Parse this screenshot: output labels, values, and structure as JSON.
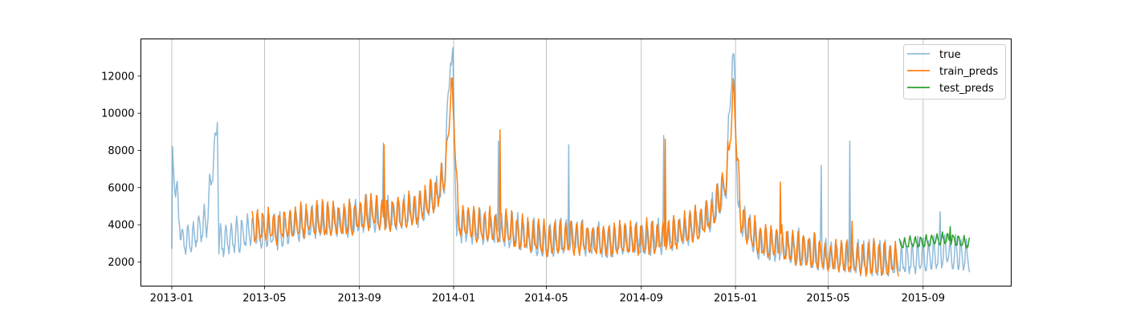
{
  "chart_data": {
    "type": "line",
    "title": "",
    "xlabel": "",
    "ylabel": "",
    "xlim": [
      "2012-11-22",
      "2015-12-24"
    ],
    "ylim": [
      700,
      14000
    ],
    "grid": {
      "x": true,
      "y": false
    },
    "legend_position": "top-right",
    "x_ticks": [
      "2013-01",
      "2013-05",
      "2013-09",
      "2014-01",
      "2014-05",
      "2014-09",
      "2015-01",
      "2015-05",
      "2015-09"
    ],
    "y_ticks": [
      2000,
      4000,
      6000,
      8000,
      10000,
      12000
    ],
    "series": [
      {
        "name": "true",
        "color": "#1f77b4",
        "alpha": 0.5,
        "date_range": [
          "2013-01-01",
          "2015-10-31"
        ],
        "anchors": [
          [
            "2013-01-01",
            2000
          ],
          [
            "2013-01-02",
            8200
          ],
          [
            "2013-01-06",
            6200
          ],
          [
            "2013-01-15",
            3100
          ],
          [
            "2013-02-15",
            4200
          ],
          [
            "2013-03-01",
            9500
          ],
          [
            "2013-03-03",
            3200
          ],
          [
            "2013-04-15",
            3700
          ],
          [
            "2013-05-15",
            3600
          ],
          [
            "2013-06-15",
            4000
          ],
          [
            "2013-07-15",
            4200
          ],
          [
            "2013-08-15",
            4300
          ],
          [
            "2013-09-15",
            4600
          ],
          [
            "2013-10-15",
            4500
          ],
          [
            "2013-11-15",
            4800
          ],
          [
            "2013-12-10",
            5600
          ],
          [
            "2013-12-20",
            6500
          ],
          [
            "2013-12-28",
            13400
          ],
          [
            "2013-12-31",
            12500
          ],
          [
            "2014-01-05",
            4000
          ],
          [
            "2014-02-01",
            3900
          ],
          [
            "2014-03-01",
            3800
          ],
          [
            "2014-04-01",
            3500
          ],
          [
            "2014-05-01",
            3100
          ],
          [
            "2014-06-01",
            3400
          ],
          [
            "2014-07-01",
            3200
          ],
          [
            "2014-08-01",
            3200
          ],
          [
            "2014-09-01",
            3300
          ],
          [
            "2014-10-01",
            3400
          ],
          [
            "2014-11-01",
            3800
          ],
          [
            "2014-12-01",
            4600
          ],
          [
            "2014-12-20",
            6200
          ],
          [
            "2014-12-28",
            13300
          ],
          [
            "2014-12-31",
            11500
          ],
          [
            "2015-01-05",
            4400
          ],
          [
            "2015-02-01",
            3000
          ],
          [
            "2015-03-01",
            2900
          ],
          [
            "2015-04-01",
            2700
          ],
          [
            "2015-05-01",
            2300
          ],
          [
            "2015-06-01",
            2200
          ],
          [
            "2015-07-01",
            2100
          ],
          [
            "2015-08-01",
            2100
          ],
          [
            "2015-09-01",
            2400
          ],
          [
            "2015-10-01",
            2600
          ],
          [
            "2015-10-31",
            2400
          ]
        ],
        "spikes": [
          [
            "2013-03-01",
            9500
          ],
          [
            "2013-10-02",
            8400
          ],
          [
            "2014-02-28",
            8500
          ],
          [
            "2014-05-30",
            8300
          ],
          [
            "2014-09-30",
            8800
          ],
          [
            "2015-04-22",
            7200
          ],
          [
            "2015-05-29",
            8500
          ],
          [
            "2015-09-23",
            4700
          ]
        ],
        "weekly_amplitude": 1500
      },
      {
        "name": "train_preds",
        "color": "#ff7f0e",
        "date_range": [
          "2013-04-15",
          "2015-07-31"
        ],
        "anchors": [
          [
            "2013-04-15",
            4000
          ],
          [
            "2013-05-15",
            3900
          ],
          [
            "2013-06-15",
            4200
          ],
          [
            "2013-07-15",
            4300
          ],
          [
            "2013-08-15",
            4300
          ],
          [
            "2013-09-15",
            4700
          ],
          [
            "2013-10-15",
            4600
          ],
          [
            "2013-11-15",
            4900
          ],
          [
            "2013-12-10",
            5700
          ],
          [
            "2013-12-22",
            7000
          ],
          [
            "2013-12-29",
            11700
          ],
          [
            "2014-01-02",
            9500
          ],
          [
            "2014-01-07",
            4300
          ],
          [
            "2014-02-01",
            4000
          ],
          [
            "2014-03-01",
            3900
          ],
          [
            "2014-04-01",
            3500
          ],
          [
            "2014-05-01",
            3200
          ],
          [
            "2014-06-01",
            3400
          ],
          [
            "2014-07-01",
            3200
          ],
          [
            "2014-08-01",
            3200
          ],
          [
            "2014-09-01",
            3300
          ],
          [
            "2014-10-01",
            3400
          ],
          [
            "2014-11-01",
            3800
          ],
          [
            "2014-12-01",
            4600
          ],
          [
            "2014-12-20",
            6500
          ],
          [
            "2014-12-30",
            11400
          ],
          [
            "2015-01-03",
            8000
          ],
          [
            "2015-01-08",
            4400
          ],
          [
            "2015-02-01",
            3100
          ],
          [
            "2015-03-01",
            3000
          ],
          [
            "2015-04-01",
            2700
          ],
          [
            "2015-05-01",
            2300
          ],
          [
            "2015-06-01",
            2300
          ],
          [
            "2015-07-01",
            2200
          ],
          [
            "2015-07-31",
            2200
          ]
        ],
        "spikes": [
          [
            "2013-10-03",
            8300
          ],
          [
            "2014-03-02",
            9100
          ],
          [
            "2014-10-02",
            8600
          ],
          [
            "2015-02-28",
            6300
          ],
          [
            "2015-06-01",
            4200
          ]
        ],
        "weekly_amplitude": 1500
      },
      {
        "name": "test_preds",
        "color": "#2ca02c",
        "date_range": [
          "2015-08-01",
          "2015-10-31"
        ],
        "anchors": [
          [
            "2015-08-01",
            3000
          ],
          [
            "2015-09-01",
            3100
          ],
          [
            "2015-10-01",
            3300
          ],
          [
            "2015-10-31",
            3000
          ]
        ],
        "spikes": [
          [
            "2015-10-06",
            3900
          ]
        ],
        "weekly_amplitude": 500
      }
    ]
  }
}
